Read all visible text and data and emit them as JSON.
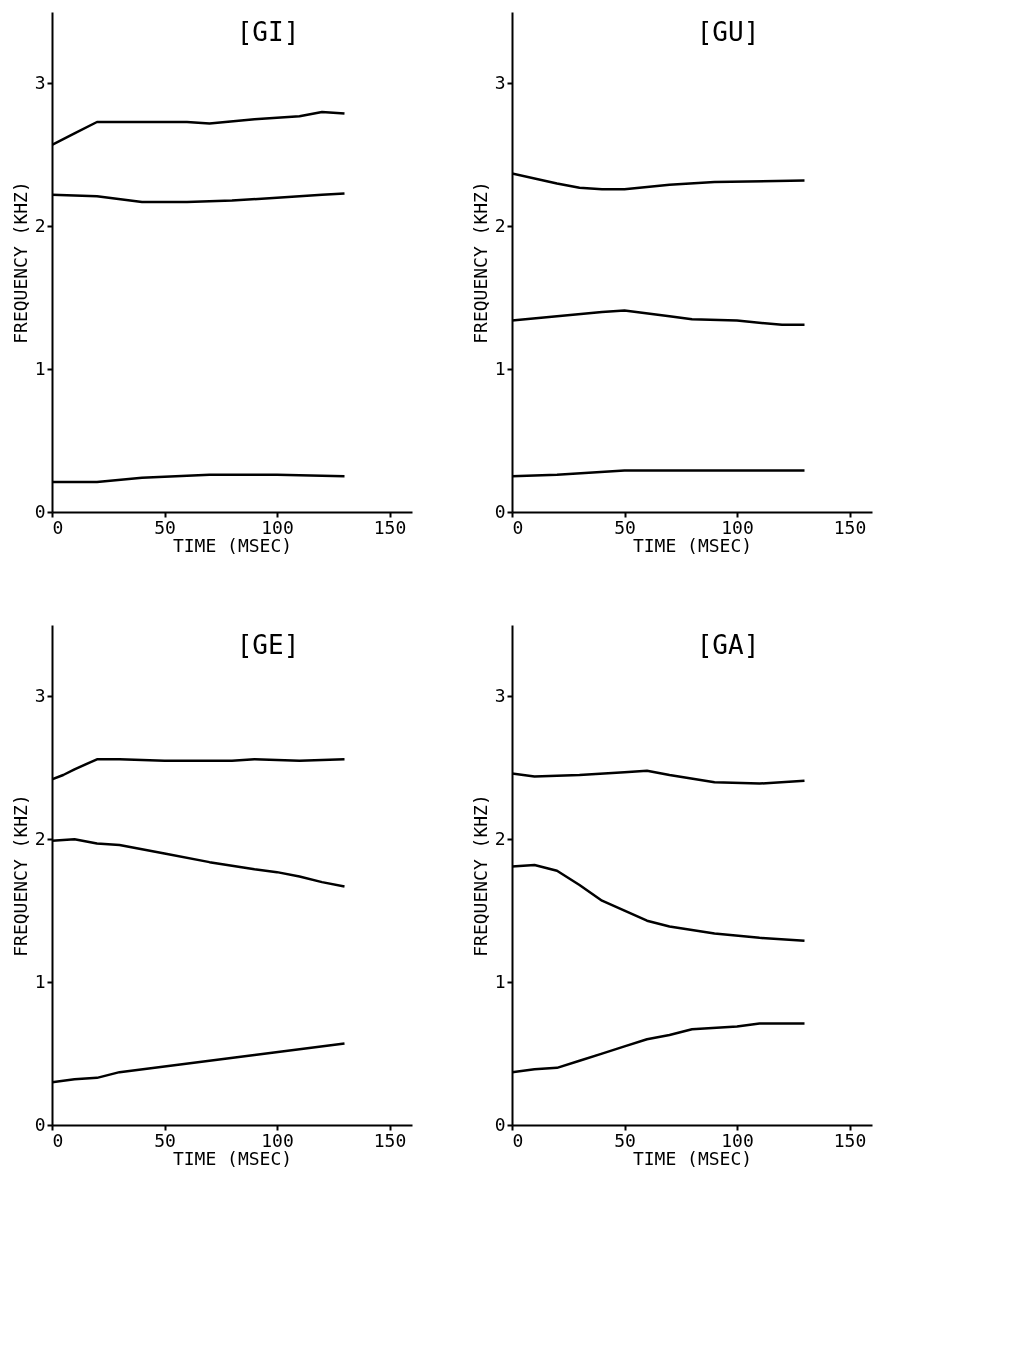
{
  "chart_data": [
    {
      "type": "line",
      "title": "[GI]",
      "xlabel": "TIME  (MSEC)",
      "ylabel": "FREQUENCY  (KHZ)",
      "xlim": [
        0,
        160
      ],
      "ylim": [
        0,
        3.5
      ],
      "xticks": [
        0,
        50,
        100,
        150
      ],
      "yticks": [
        0,
        1,
        2,
        3
      ],
      "grid": false,
      "marker": "none",
      "series": [
        {
          "color": "#000000",
          "x": [
            0,
            10,
            20,
            40,
            70,
            100,
            130
          ],
          "values": [
            0.21,
            0.21,
            0.21,
            0.24,
            0.26,
            0.26,
            0.25
          ]
        },
        {
          "color": "#000000",
          "x": [
            0,
            20,
            40,
            60,
            80,
            100,
            120,
            130
          ],
          "values": [
            2.22,
            2.21,
            2.17,
            2.17,
            2.18,
            2.2,
            2.22,
            2.23
          ]
        },
        {
          "color": "#000000",
          "x": [
            0,
            10,
            20,
            40,
            60,
            70,
            90,
            110,
            120,
            130
          ],
          "values": [
            2.57,
            2.65,
            2.73,
            2.73,
            2.73,
            2.72,
            2.75,
            2.77,
            2.8,
            2.79
          ]
        }
      ]
    },
    {
      "type": "line",
      "title": "[GU]",
      "xlabel": "TIME  (MSEC)",
      "ylabel": "FREQUENCY  (KHZ)",
      "xlim": [
        0,
        160
      ],
      "ylim": [
        0,
        3.5
      ],
      "xticks": [
        0,
        50,
        100,
        150
      ],
      "yticks": [
        0,
        1,
        2,
        3
      ],
      "grid": false,
      "marker": "none",
      "series": [
        {
          "color": "#000000",
          "x": [
            0,
            20,
            50,
            130
          ],
          "values": [
            0.25,
            0.26,
            0.29,
            0.29
          ]
        },
        {
          "color": "#000000",
          "x": [
            0,
            20,
            40,
            50,
            70,
            80,
            100,
            120,
            130
          ],
          "values": [
            1.34,
            1.37,
            1.4,
            1.41,
            1.37,
            1.35,
            1.34,
            1.31,
            1.31
          ]
        },
        {
          "color": "#000000",
          "x": [
            0,
            20,
            30,
            40,
            50,
            70,
            90,
            130
          ],
          "values": [
            2.37,
            2.3,
            2.27,
            2.26,
            2.26,
            2.29,
            2.31,
            2.32
          ]
        }
      ]
    },
    {
      "type": "line",
      "title": "[GE]",
      "xlabel": "TIME  (MSEC)",
      "ylabel": "FREQUENCY  (KHZ)",
      "xlim": [
        0,
        160
      ],
      "ylim": [
        0,
        3.5
      ],
      "xticks": [
        0,
        50,
        100,
        150
      ],
      "yticks": [
        0,
        1,
        2,
        3
      ],
      "grid": false,
      "marker": "none",
      "series": [
        {
          "color": "#000000",
          "x": [
            0,
            10,
            20,
            30,
            50,
            70,
            90,
            110,
            130
          ],
          "values": [
            0.3,
            0.32,
            0.33,
            0.37,
            0.41,
            0.45,
            0.49,
            0.53,
            0.57
          ]
        },
        {
          "color": "#000000",
          "x": [
            0,
            10,
            20,
            30,
            50,
            70,
            90,
            100,
            110,
            120,
            130
          ],
          "values": [
            1.99,
            2.0,
            1.97,
            1.96,
            1.9,
            1.84,
            1.79,
            1.77,
            1.74,
            1.7,
            1.67
          ]
        },
        {
          "color": "#000000",
          "x": [
            0,
            5,
            10,
            20,
            30,
            50,
            80,
            90,
            110,
            130
          ],
          "values": [
            2.42,
            2.45,
            2.49,
            2.56,
            2.56,
            2.55,
            2.55,
            2.56,
            2.55,
            2.56
          ]
        }
      ]
    },
    {
      "type": "line",
      "title": "[GA]",
      "xlabel": "TIME  (MSEC)",
      "ylabel": "FREQUENCY  (KHZ)",
      "xlim": [
        0,
        160
      ],
      "ylim": [
        0,
        3.5
      ],
      "xticks": [
        0,
        50,
        100,
        150
      ],
      "yticks": [
        0,
        1,
        2,
        3
      ],
      "grid": false,
      "marker": "none",
      "series": [
        {
          "color": "#000000",
          "x": [
            0,
            10,
            20,
            30,
            40,
            50,
            60,
            70,
            80,
            100,
            110,
            130
          ],
          "values": [
            0.37,
            0.39,
            0.4,
            0.45,
            0.5,
            0.55,
            0.6,
            0.63,
            0.67,
            0.69,
            0.71,
            0.71
          ]
        },
        {
          "color": "#000000",
          "x": [
            0,
            10,
            20,
            30,
            40,
            50,
            60,
            70,
            90,
            110,
            130
          ],
          "values": [
            1.81,
            1.82,
            1.78,
            1.68,
            1.57,
            1.5,
            1.43,
            1.39,
            1.34,
            1.31,
            1.29
          ]
        },
        {
          "color": "#000000",
          "x": [
            0,
            10,
            30,
            50,
            60,
            70,
            90,
            110,
            130
          ],
          "values": [
            2.46,
            2.44,
            2.45,
            2.47,
            2.48,
            2.45,
            2.4,
            2.39,
            2.41
          ]
        }
      ]
    }
  ]
}
